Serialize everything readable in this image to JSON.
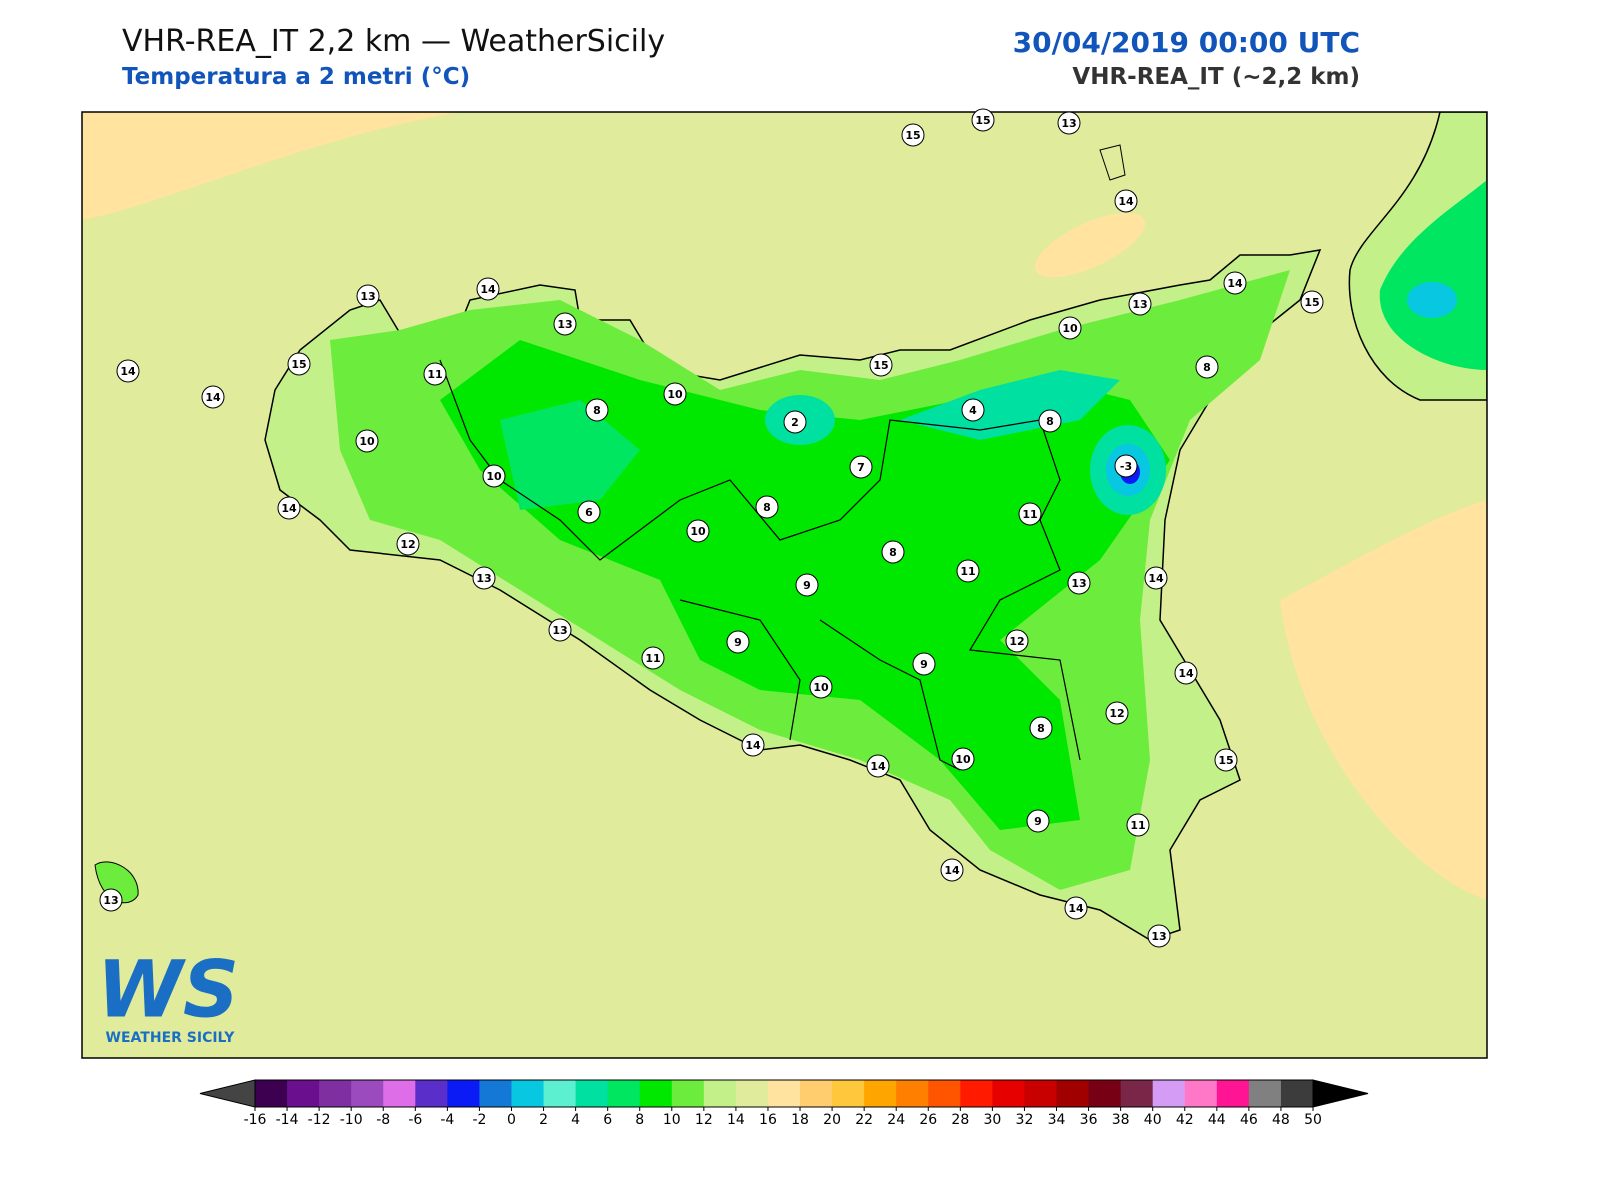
{
  "header": {
    "title": "VHR-REA_IT 2,2 km — WeatherSicily",
    "subtitle": "Temperatura a 2 metri (°C)",
    "datetime": "30/04/2019 00:00 UTC",
    "model": "VHR-REA_IT (~2,2 km)"
  },
  "logo": {
    "mark": "WS",
    "name": "WEATHER SICILY"
  },
  "stations": [
    15,
    15,
    13,
    14,
    14,
    13,
    13,
    13,
    14,
    15,
    10,
    14,
    15,
    11,
    10,
    15,
    8,
    14,
    8,
    2,
    4,
    8,
    10,
    7,
    -3,
    10,
    14,
    8,
    6,
    10,
    11,
    12,
    8,
    11,
    13,
    14,
    13,
    9,
    13,
    9,
    12,
    11,
    9,
    14,
    10,
    12,
    8,
    14,
    10,
    14,
    15,
    9,
    11,
    14,
    14,
    13,
    13
  ],
  "colorbar": {
    "ticks": [
      -16,
      -14,
      -12,
      -10,
      -8,
      -6,
      -4,
      -2,
      0,
      2,
      4,
      6,
      8,
      10,
      12,
      14,
      16,
      18,
      20,
      22,
      24,
      26,
      28,
      30,
      32,
      34,
      36,
      38,
      40,
      42,
      44,
      46,
      48,
      50
    ],
    "colors": [
      "#3d0050",
      "#6a0f8e",
      "#7f2fa0",
      "#9b4bbd",
      "#dd6ee8",
      "#5a2ec8",
      "#0b1bf5",
      "#1478d6",
      "#07c8e0",
      "#5cefd0",
      "#00e0a0",
      "#00e660",
      "#00e800",
      "#6cec3c",
      "#c4f08a",
      "#e0eb9c",
      "#ffe39e",
      "#ffcd6e",
      "#ffc83c",
      "#ffa500",
      "#ff7f00",
      "#ff5500",
      "#ff1a00",
      "#e60000",
      "#c80000",
      "#a00000",
      "#780014",
      "#7a2648",
      "#d59cf5",
      "#ff78c8",
      "#ff1493",
      "#808080",
      "#3c3c3c"
    ],
    "under": "#444444",
    "over": "#000000"
  }
}
